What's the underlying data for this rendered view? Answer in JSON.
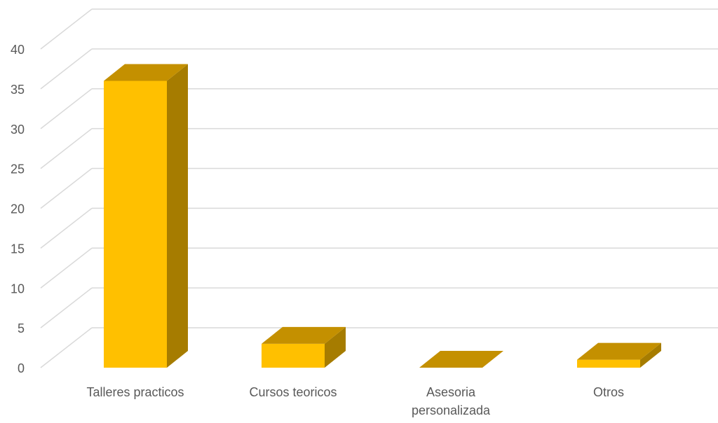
{
  "chart_data": {
    "type": "bar",
    "style": "3d-column",
    "title": "",
    "xlabel": "",
    "ylabel": "",
    "categories": [
      "Talleres practicos",
      "Cursos teoricos",
      "Asesoria personalizada",
      "Otros"
    ],
    "category_lines": [
      [
        "Talleres practicos"
      ],
      [
        "Cursos teoricos"
      ],
      [
        "Asesoria",
        "personalizada"
      ],
      [
        "Otros"
      ]
    ],
    "values": [
      36,
      3,
      0,
      1
    ],
    "ylim": [
      0,
      40
    ],
    "yticks": [
      "0",
      "5",
      "10",
      "15",
      "20",
      "25",
      "30",
      "35",
      "40"
    ],
    "grid": true,
    "legend": "none",
    "colors": {
      "front": "#FFC000",
      "top": "#C49000",
      "side": "#A67C00",
      "grid": "#D9D9D9",
      "label": "#595959"
    }
  }
}
